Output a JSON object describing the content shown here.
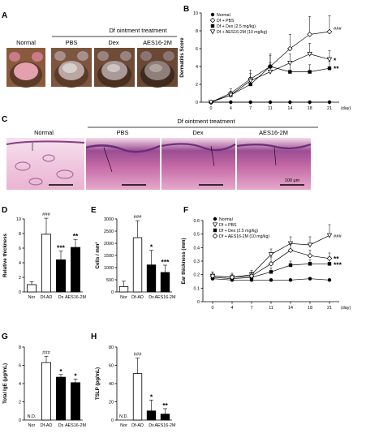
{
  "panel_letters": {
    "A": "A",
    "B": "B",
    "C": "C",
    "D": "D",
    "E": "E",
    "F": "F",
    "G": "G",
    "H": "H"
  },
  "panel_a": {
    "group_header": "Df ointment treatment",
    "labels": [
      "Normal",
      "PBS",
      "Dex",
      "AES16-2M"
    ]
  },
  "panel_c": {
    "group_header": "Df ointment treatment",
    "labels": [
      "Normal",
      "PBS",
      "Dex",
      "AES16-2M"
    ],
    "scale_bar": "100 μm"
  },
  "colors": {
    "photo_bg": "#8a5a3c",
    "skin_pink": "#e3a0ad",
    "he_pink": "#d88ab4",
    "he_purple": "#7a3f8c"
  },
  "chart_data": [
    {
      "id": "B",
      "type": "line",
      "ylabel": "Dermatitis Score",
      "xlabel_suffix": "(day)",
      "x": [
        0,
        4,
        7,
        11,
        14,
        18,
        21
      ],
      "ylim": [
        0,
        10
      ],
      "yticks": [
        0,
        2,
        4,
        6,
        8,
        10
      ],
      "legend": [
        "Normal",
        "Df + PBS",
        "Df + Dex (2.5 mg/kg)",
        "Df + AES16-2M (10 mg/kg)"
      ],
      "series": [
        {
          "name": "Normal",
          "marker": "circle-filled",
          "values": [
            0,
            0,
            0,
            0,
            0,
            0,
            0
          ],
          "err": [
            0,
            0,
            0,
            0,
            0,
            0,
            0
          ]
        },
        {
          "name": "Df + PBS",
          "marker": "diamond-open",
          "values": [
            0,
            1,
            2.6,
            4,
            6,
            7.6,
            7.9
          ],
          "err": [
            0,
            0.5,
            1,
            1.4,
            1.6,
            2.0,
            1.8
          ]
        },
        {
          "name": "Df + Dex (2.5 mg/kg)",
          "marker": "square-filled",
          "values": [
            0,
            0.8,
            2,
            4,
            3.4,
            3.4,
            3.8
          ],
          "err": [
            0,
            0.4,
            0.8,
            1.2,
            1.0,
            0.8,
            0.8
          ]
        },
        {
          "name": "Df + AES16-2M (10 mg/kg)",
          "marker": "triangle-open",
          "values": [
            0,
            0.8,
            2.4,
            3.4,
            4.4,
            5.4,
            4.8
          ],
          "err": [
            0,
            0.4,
            0.8,
            1.0,
            1.0,
            1.2,
            1.0
          ]
        }
      ],
      "annotations": [
        "###",
        "*",
        "**"
      ]
    },
    {
      "id": "D",
      "type": "bar",
      "ylabel": "Relative thickness",
      "categories": [
        "Nor",
        "Df-AD",
        "Dx",
        "AES16-2M"
      ],
      "values": [
        1,
        7.9,
        4.4,
        6.1
      ],
      "err": [
        0.4,
        2.2,
        1.2,
        1.1
      ],
      "fills": [
        "open",
        "open",
        "filled",
        "filled"
      ],
      "ylim": [
        0,
        10
      ],
      "yticks": [
        0,
        2,
        4,
        6,
        8,
        10
      ],
      "annotations": [
        "",
        "###",
        "***",
        "**"
      ]
    },
    {
      "id": "E",
      "type": "bar",
      "ylabel": "Cells / mm²",
      "categories": [
        "Nor",
        "Df-AD",
        "Dx",
        "AES16-2M"
      ],
      "values": [
        220,
        2230,
        1110,
        800
      ],
      "err": [
        220,
        700,
        600,
        300
      ],
      "fills": [
        "open",
        "open",
        "filled",
        "filled"
      ],
      "ylim": [
        0,
        3000
      ],
      "yticks": [
        0,
        500,
        1000,
        1500,
        2000,
        2500,
        3000
      ],
      "annotations": [
        "",
        "###",
        "*",
        "***"
      ]
    },
    {
      "id": "F",
      "type": "line",
      "ylabel": "Ear thickness (mm)",
      "xlabel_suffix": "(day)",
      "x": [
        0,
        4,
        7,
        11,
        14,
        18,
        21
      ],
      "ylim": [
        0,
        0.6
      ],
      "yticks": [
        0,
        0.1,
        0.2,
        0.3,
        0.4,
        0.5,
        0.6
      ],
      "legend": [
        "Normal",
        "Df + PBS",
        "Df + Dex (2.5 mg/kg)",
        "Df + AES16-2M (10 mg/kg)"
      ],
      "series": [
        {
          "name": "Normal",
          "marker": "circle-filled",
          "values": [
            0.17,
            0.16,
            0.16,
            0.16,
            0.16,
            0.17,
            0.16
          ],
          "err": [
            0.01,
            0.01,
            0.01,
            0.01,
            0.01,
            0.01,
            0.01
          ]
        },
        {
          "name": "Df + PBS",
          "marker": "triangle-open",
          "values": [
            0.19,
            0.18,
            0.2,
            0.35,
            0.43,
            0.42,
            0.49
          ],
          "err": [
            0.03,
            0.03,
            0.03,
            0.04,
            0.05,
            0.06,
            0.08
          ]
        },
        {
          "name": "Df + Dex (2.5 mg/kg)",
          "marker": "square-filled",
          "values": [
            0.18,
            0.17,
            0.18,
            0.22,
            0.27,
            0.28,
            0.28
          ],
          "err": [
            0.02,
            0.02,
            0.02,
            0.03,
            0.03,
            0.03,
            0.03
          ]
        },
        {
          "name": "Df + AES16-2M (10 mg/kg)",
          "marker": "diamond-open",
          "values": [
            0.19,
            0.18,
            0.19,
            0.28,
            0.38,
            0.34,
            0.32
          ],
          "err": [
            0.03,
            0.02,
            0.03,
            0.05,
            0.05,
            0.04,
            0.04
          ]
        }
      ],
      "annotations": [
        "###",
        "**",
        "***"
      ]
    },
    {
      "id": "G",
      "type": "bar",
      "ylabel": "Total IgE (μg/mL)",
      "categories": [
        "Nor",
        "Df-AD",
        "Dx",
        "AES16-2M"
      ],
      "values": [
        null,
        6.3,
        4.7,
        4.1
      ],
      "err": [
        0,
        0.7,
        0.3,
        0.4
      ],
      "fills": [
        "open",
        "open",
        "filled",
        "filled"
      ],
      "ylim": [
        0,
        8
      ],
      "yticks": [
        0,
        2,
        4,
        6,
        8
      ],
      "annotations": [
        "N.D.",
        "###",
        "*",
        "*"
      ]
    },
    {
      "id": "H",
      "type": "bar",
      "ylabel": "TSLP (pg/mL)",
      "categories": [
        "Nor",
        "Df-AD",
        "Dx",
        "AES16-2M"
      ],
      "values": [
        null,
        51,
        10,
        6.5
      ],
      "err": [
        0,
        17,
        12,
        6
      ],
      "fills": [
        "open",
        "open",
        "filled",
        "filled"
      ],
      "ylim": [
        0,
        80
      ],
      "yticks": [
        0,
        20,
        40,
        60,
        80
      ],
      "annotations": [
        "N.D.",
        "###",
        "*",
        "**"
      ]
    }
  ]
}
